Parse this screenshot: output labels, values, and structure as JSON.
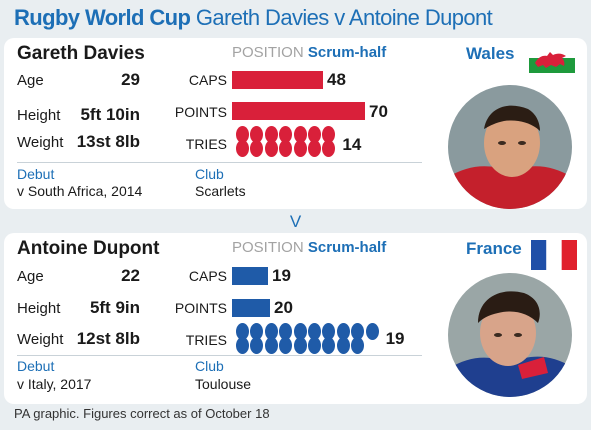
{
  "title": {
    "part1": "Rugby World Cup",
    "part2": "Gareth Davies v Antoine Dupont"
  },
  "labels": {
    "age": "Age",
    "height": "Height",
    "weight": "Weight",
    "caps": "CAPS",
    "points": "POINTS",
    "tries": "TRIES",
    "position": "POSITION",
    "debut": "Debut",
    "club": "Club"
  },
  "versus": "V",
  "footer": "PA graphic. Figures correct as of October 18",
  "colors": {
    "wales": "#d9203a",
    "france": "#1f5ba8",
    "accent": "#1d6fb6"
  },
  "players": [
    {
      "name": "Gareth Davies",
      "team": "Wales",
      "position": "Scrum-half",
      "age": "29",
      "height": "5ft 10in",
      "weight": "13st 8lb",
      "debut": "v South Africa, 2014",
      "club": "Scarlets",
      "flag_icon": "wales-flag-icon",
      "photo_icon": "player-photo-icon"
    },
    {
      "name": "Antoine Dupont",
      "team": "France",
      "position": "Scrum-half",
      "age": "22",
      "height": "5ft 9in",
      "weight": "12st 8lb",
      "debut": "v Italy, 2017",
      "club": "Toulouse",
      "flag_icon": "france-flag-icon",
      "photo_icon": "player-photo-icon"
    }
  ],
  "chart_data": {
    "type": "bar",
    "categories": [
      "CAPS",
      "POINTS",
      "TRIES"
    ],
    "series": [
      {
        "name": "Gareth Davies",
        "values": [
          48,
          70,
          14
        ]
      },
      {
        "name": "Antoine Dupont",
        "values": [
          19,
          20,
          19
        ]
      }
    ]
  }
}
